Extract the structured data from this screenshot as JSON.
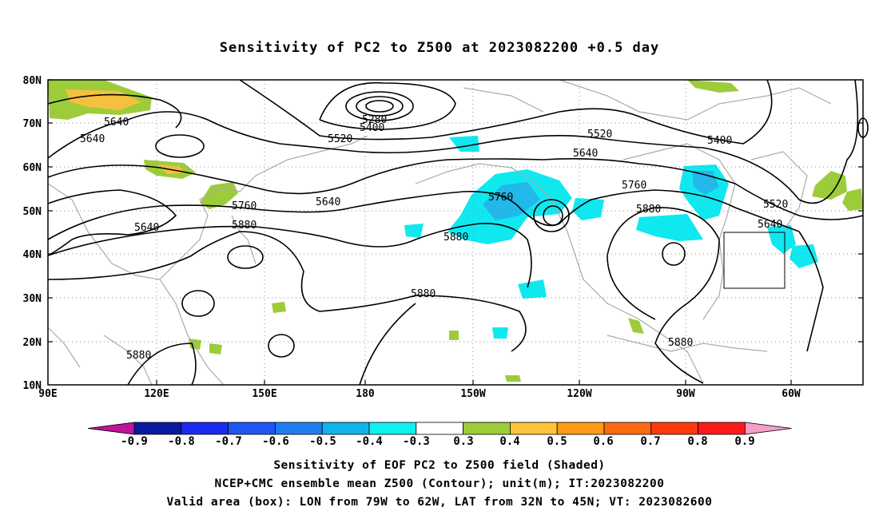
{
  "title": "Sensitivity of PC2 to Z500 at 2023082200 +0.5 day",
  "lat_labels": [
    "80N",
    "70N",
    "60N",
    "50N",
    "40N",
    "30N",
    "20N",
    "10N"
  ],
  "lon_labels": [
    "90E",
    "120E",
    "150E",
    "180",
    "150W",
    "120W",
    "90W",
    "60W"
  ],
  "contour_labels": [
    "5280",
    "5400",
    "5400",
    "5520",
    "5520",
    "5520",
    "5640",
    "5640",
    "5640",
    "5640",
    "5640",
    "5640",
    "5760",
    "5760",
    "5760",
    "5880",
    "5880",
    "5880",
    "5880",
    "5880",
    "5880"
  ],
  "colorbar": {
    "labels": [
      "-0.9",
      "-0.8",
      "-0.7",
      "-0.6",
      "-0.5",
      "-0.4",
      "-0.3",
      "0.3",
      "0.4",
      "0.5",
      "0.6",
      "0.7",
      "0.8",
      "0.9"
    ],
    "colors": [
      "#0a1aa0",
      "#1c2bf0",
      "#1f55f5",
      "#1e7ef0",
      "#11b4ea",
      "#10f0f0",
      "#ffffff",
      "#9dcc3a",
      "#ffc53a",
      "#ff9a14",
      "#ff6a10",
      "#ff3a0a",
      "#ff1a1a"
    ],
    "low_end_color": "#c0149b",
    "high_end_color": "#f5a0c8"
  },
  "colors": {
    "negative_shading": "#10e8f0",
    "negative_strong": "#22b8ea",
    "positive_shading": "#9dcc3a",
    "positive_strong": "#f5c040",
    "coastline": "#aaaaaa",
    "contour": "#000000"
  },
  "footer": {
    "line1": "Sensitivity of EOF PC2 to Z500 field (Shaded)",
    "line2": "NCEP+CMC ensemble mean Z500 (Contour); unit(m); IT:2023082200",
    "line3": "Valid area (box): LON from 79W to 62W, LAT from 32N to 45N; VT: 2023082600"
  },
  "valid_box": {
    "lon_west": -79,
    "lon_east": -62,
    "lat_south": 32,
    "lat_north": 45
  }
}
